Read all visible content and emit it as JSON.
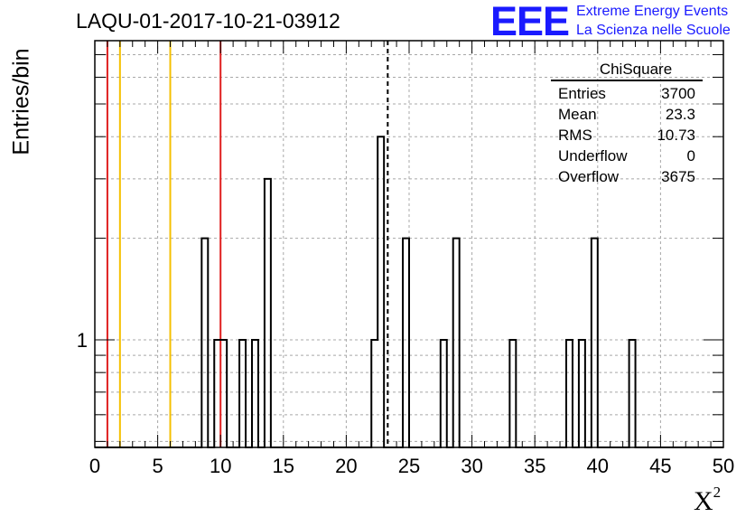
{
  "title": "LAQU-01-2017-10-21-03912",
  "logo": {
    "mark": "EEE",
    "line1": "Extreme Energy Events",
    "line2": "La Scienza nelle Scuole"
  },
  "stats": {
    "title": "ChiSquare",
    "rows": [
      {
        "label": "Entries",
        "value": "3700"
      },
      {
        "label": "Mean",
        "value": "23.3"
      },
      {
        "label": "RMS",
        "value": "10.73"
      },
      {
        "label": "Underflow",
        "value": "0"
      },
      {
        "label": "Overflow",
        "value": "3675"
      }
    ]
  },
  "chart_data": {
    "type": "bar",
    "ylabel": "Entries/bin",
    "xlabel": "X",
    "xlabel_superscript": "2",
    "x_range": [
      0,
      50
    ],
    "x_ticks": [
      0,
      5,
      10,
      15,
      20,
      25,
      30,
      35,
      40,
      45,
      50
    ],
    "y_scale": "log",
    "y_range": [
      0.48,
      7.7
    ],
    "y_tick_labels": [
      {
        "value": 1,
        "label": "1"
      }
    ],
    "grid": true,
    "bin_width": 0.5,
    "bins": [
      {
        "x_low": 8.5,
        "count": 2
      },
      {
        "x_low": 9.5,
        "count": 1
      },
      {
        "x_low": 10.0,
        "count": 1
      },
      {
        "x_low": 11.5,
        "count": 1
      },
      {
        "x_low": 12.5,
        "count": 1
      },
      {
        "x_low": 13.5,
        "count": 3
      },
      {
        "x_low": 22.0,
        "count": 1
      },
      {
        "x_low": 22.5,
        "count": 4
      },
      {
        "x_low": 24.5,
        "count": 2
      },
      {
        "x_low": 27.5,
        "count": 1
      },
      {
        "x_low": 28.5,
        "count": 2
      },
      {
        "x_low": 33.0,
        "count": 1
      },
      {
        "x_low": 37.5,
        "count": 1
      },
      {
        "x_low": 38.5,
        "count": 1
      },
      {
        "x_low": 39.5,
        "count": 2
      },
      {
        "x_low": 42.5,
        "count": 1
      }
    ],
    "reference_lines": [
      {
        "x": 1,
        "color": "#e02020",
        "style": "solid"
      },
      {
        "x": 2,
        "color": "#f5c000",
        "style": "solid"
      },
      {
        "x": 6,
        "color": "#f5c000",
        "style": "solid"
      },
      {
        "x": 10,
        "color": "#e02020",
        "style": "solid"
      },
      {
        "x": 23.3,
        "color": "#000000",
        "style": "dashed"
      }
    ]
  }
}
